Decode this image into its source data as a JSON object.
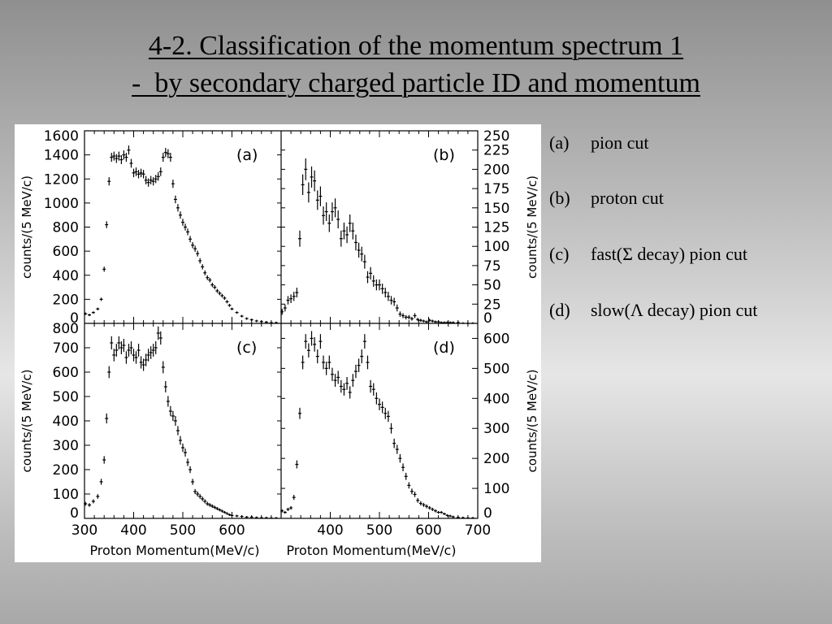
{
  "title": {
    "line1": "4-2. Classification of the momentum spectrum 1",
    "line2": "-  by secondary charged particle ID and momentum"
  },
  "legend": [
    {
      "key": "(a)",
      "text": "pion cut"
    },
    {
      "key": "(b)",
      "text": "proton cut"
    },
    {
      "key": "(c)",
      "text": "fast(Σ decay) pion cut"
    },
    {
      "key": "(d)",
      "text": "slow(Λ decay) pion cut"
    }
  ],
  "chart_data": [
    {
      "type": "scatter",
      "panel": "a",
      "label": "(a)",
      "ylabel": "counts/(5 MeV/c)",
      "xlabel": "",
      "xlim": [
        300,
        700
      ],
      "ylim": [
        0,
        1600
      ],
      "yticks": [
        0,
        200,
        400,
        600,
        800,
        1000,
        1200,
        1400,
        1600
      ],
      "x": [
        302,
        310,
        318,
        327,
        334,
        340,
        345,
        350,
        355,
        360,
        365,
        370,
        375,
        380,
        385,
        390,
        395,
        400,
        405,
        410,
        415,
        420,
        425,
        430,
        435,
        440,
        445,
        450,
        455,
        460,
        465,
        470,
        475,
        480,
        485,
        490,
        495,
        500,
        505,
        510,
        515,
        520,
        525,
        530,
        535,
        540,
        545,
        550,
        555,
        560,
        565,
        570,
        575,
        580,
        585,
        590,
        595,
        600,
        610,
        620,
        630,
        640,
        650,
        660,
        670,
        680,
        690
      ],
      "y": [
        80,
        70,
        90,
        120,
        200,
        450,
        820,
        1180,
        1380,
        1390,
        1370,
        1390,
        1360,
        1400,
        1380,
        1440,
        1330,
        1250,
        1260,
        1240,
        1250,
        1240,
        1190,
        1170,
        1190,
        1180,
        1200,
        1220,
        1260,
        1380,
        1420,
        1410,
        1380,
        1160,
        1030,
        960,
        900,
        840,
        800,
        760,
        700,
        650,
        620,
        580,
        520,
        470,
        420,
        380,
        360,
        320,
        300,
        270,
        250,
        230,
        210,
        180,
        150,
        120,
        90,
        60,
        40,
        30,
        20,
        15,
        10,
        5,
        5
      ]
    },
    {
      "type": "scatter",
      "panel": "b",
      "label": "(b)",
      "ylabel": "counts/(5 MeV/c)",
      "xlabel": "",
      "xlim": [
        300,
        700
      ],
      "ylim": [
        0,
        250
      ],
      "yticks": [
        0,
        25,
        50,
        75,
        100,
        125,
        150,
        175,
        200,
        225,
        250
      ],
      "x": [
        302,
        308,
        314,
        320,
        326,
        332,
        338,
        344,
        350,
        356,
        362,
        368,
        374,
        380,
        386,
        392,
        398,
        404,
        410,
        416,
        422,
        428,
        434,
        440,
        446,
        452,
        458,
        464,
        470,
        476,
        482,
        488,
        494,
        500,
        506,
        512,
        518,
        524,
        530,
        536,
        542,
        548,
        554,
        560,
        566,
        572,
        578,
        584,
        590,
        596,
        602,
        608,
        614,
        620,
        626,
        632,
        638,
        644,
        650,
        660,
        670,
        680,
        690
      ],
      "y": [
        15,
        20,
        30,
        32,
        35,
        40,
        110,
        180,
        200,
        170,
        190,
        185,
        160,
        165,
        140,
        145,
        130,
        145,
        150,
        135,
        110,
        120,
        115,
        130,
        120,
        105,
        95,
        90,
        80,
        60,
        65,
        55,
        50,
        50,
        45,
        40,
        35,
        30,
        28,
        20,
        12,
        10,
        8,
        8,
        6,
        10,
        5,
        4,
        3,
        2,
        4,
        3,
        2,
        2,
        1,
        1,
        1,
        1,
        1,
        1,
        0,
        0,
        0
      ]
    },
    {
      "type": "scatter",
      "panel": "c",
      "label": "(c)",
      "ylabel": "counts/(5 MeV/c)",
      "xlabel": "Proton Momentum(MeV/c)",
      "xlim": [
        300,
        700
      ],
      "ylim": [
        0,
        800
      ],
      "xticks": [
        300,
        400,
        500,
        600
      ],
      "yticks": [
        0,
        100,
        200,
        300,
        400,
        500,
        600,
        700,
        800
      ],
      "x": [
        302,
        310,
        318,
        327,
        334,
        340,
        345,
        350,
        355,
        360,
        365,
        370,
        375,
        380,
        385,
        390,
        395,
        400,
        405,
        410,
        415,
        420,
        425,
        430,
        435,
        440,
        445,
        450,
        455,
        460,
        465,
        470,
        475,
        480,
        485,
        490,
        495,
        500,
        505,
        510,
        515,
        520,
        525,
        530,
        535,
        540,
        545,
        550,
        555,
        560,
        565,
        570,
        575,
        580,
        585,
        590,
        595,
        600,
        610,
        620,
        630,
        640,
        650,
        660,
        670,
        680,
        690
      ],
      "y": [
        60,
        55,
        70,
        90,
        150,
        240,
        410,
        600,
        720,
        670,
        690,
        720,
        700,
        710,
        660,
        690,
        700,
        670,
        660,
        690,
        640,
        630,
        650,
        670,
        680,
        690,
        700,
        760,
        740,
        620,
        540,
        480,
        440,
        420,
        400,
        360,
        320,
        290,
        270,
        230,
        200,
        150,
        110,
        100,
        90,
        80,
        70,
        60,
        55,
        50,
        45,
        40,
        35,
        30,
        25,
        20,
        15,
        12,
        10,
        8,
        5,
        5,
        3,
        2,
        2,
        1,
        1
      ]
    },
    {
      "type": "scatter",
      "panel": "d",
      "label": "(d)",
      "ylabel": "counts/(5 MeV/c)",
      "xlabel": "Proton Momentum(MeV/c)",
      "xlim": [
        300,
        700
      ],
      "ylim": [
        0,
        650
      ],
      "xticks": [
        400,
        500,
        600,
        700
      ],
      "yticks": [
        0,
        100,
        200,
        300,
        400,
        500,
        600
      ],
      "x": [
        302,
        308,
        314,
        320,
        326,
        332,
        338,
        344,
        350,
        356,
        362,
        368,
        374,
        380,
        386,
        392,
        398,
        404,
        410,
        416,
        422,
        428,
        434,
        440,
        446,
        452,
        458,
        464,
        470,
        476,
        482,
        488,
        494,
        500,
        506,
        512,
        518,
        524,
        530,
        536,
        542,
        548,
        554,
        560,
        566,
        572,
        578,
        584,
        590,
        596,
        602,
        608,
        614,
        620,
        626,
        632,
        638,
        644,
        650,
        660,
        670,
        680,
        690
      ],
      "y": [
        25,
        20,
        30,
        35,
        70,
        180,
        350,
        520,
        590,
        560,
        600,
        580,
        540,
        590,
        520,
        500,
        520,
        480,
        460,
        470,
        440,
        430,
        450,
        420,
        460,
        490,
        510,
        540,
        590,
        520,
        440,
        430,
        400,
        380,
        370,
        350,
        340,
        300,
        250,
        230,
        200,
        170,
        140,
        110,
        90,
        80,
        60,
        50,
        45,
        40,
        35,
        30,
        25,
        20,
        20,
        15,
        10,
        8,
        5,
        3,
        2,
        1,
        1
      ]
    }
  ]
}
